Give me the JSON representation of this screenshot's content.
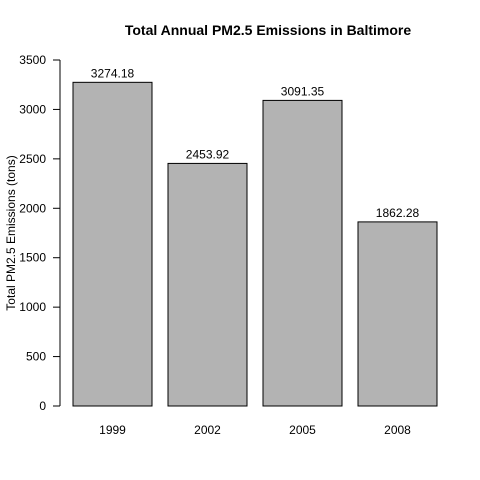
{
  "chart_data": {
    "type": "bar",
    "title": "Total Annual PM2.5 Emissions in Baltimore",
    "xlabel": "",
    "ylabel": "Total PM2.5 Emissions (tons)",
    "categories": [
      "1999",
      "2002",
      "2005",
      "2008"
    ],
    "values": [
      3274.18,
      2453.92,
      3091.35,
      1862.28
    ],
    "data_labels": [
      "3274.18",
      "2453.92",
      "3091.35",
      "1862.28"
    ],
    "ylim": [
      0,
      3500
    ],
    "yticks": [
      0,
      500,
      1000,
      1500,
      2000,
      2500,
      3000,
      3500
    ],
    "grid": false,
    "legend": "none",
    "bar_color": "#b3b3b3",
    "bar_border_color": "#000000"
  }
}
